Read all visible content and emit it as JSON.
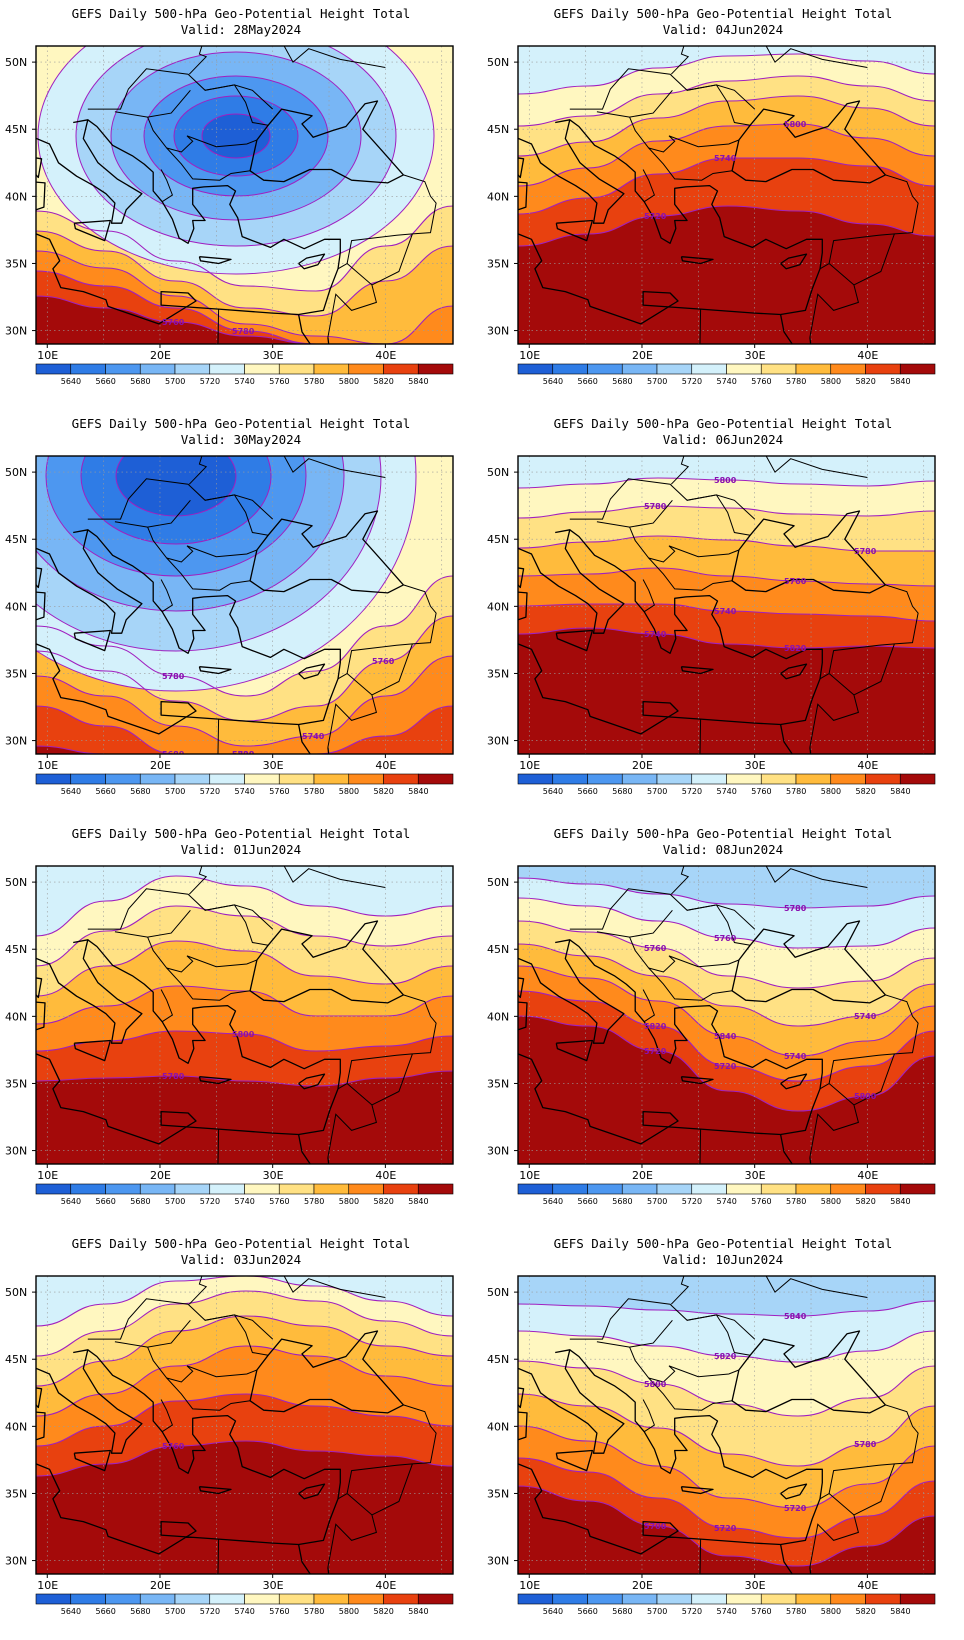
{
  "legend": {
    "levels": [
      5640,
      5660,
      5680,
      5700,
      5720,
      5740,
      5760,
      5780,
      5800,
      5820,
      5840
    ],
    "colors": [
      "#1e5fd6",
      "#2f7ce6",
      "#4d97f0",
      "#78b6f5",
      "#a7d5f8",
      "#d4f1fb",
      "#fff7c0",
      "#ffe184",
      "#ffbb3c",
      "#ff8a1c",
      "#e8410f",
      "#a40a0a"
    ],
    "labels": [
      "5640",
      "5660",
      "5680",
      "5700",
      "5720",
      "5740",
      "5760",
      "5780",
      "5800",
      "5820",
      "5840"
    ]
  },
  "axes": {
    "lon_labels": [
      "10E",
      "20E",
      "30E",
      "40E"
    ],
    "lat_labels": [
      "50N",
      "45N",
      "40N",
      "35N",
      "30N"
    ],
    "contour_color": "#a020c0"
  },
  "panels": [
    {
      "title": "GEFS Daily 500-hPa Geo-Potential Height Total",
      "valid": "Valid: 28May2024",
      "pattern": "cut-off low centered over Romania",
      "contour_labels": [
        "5760",
        "5780"
      ]
    },
    {
      "title": "GEFS Daily 500-hPa Geo-Potential Height Total",
      "valid": "Valid: 04Jun2024",
      "pattern": "zonal ridge over Mediterranean",
      "contour_labels": [
        "5720",
        "5740",
        "5800"
      ]
    },
    {
      "title": "GEFS Daily 500-hPa Geo-Potential Height Total",
      "valid": "Valid: 30May2024",
      "pattern": "trough over central Europe and Balkans",
      "contour_labels": [
        "5680",
        "5720",
        "5740",
        "5760",
        "5780",
        "5800"
      ]
    },
    {
      "title": "GEFS Daily 500-hPa Geo-Potential Height Total",
      "valid": "Valid: 06Jun2024",
      "pattern": "zonal flow",
      "contour_labels": [
        "5740",
        "5740",
        "5760",
        "5780",
        "5780",
        "5800",
        "5820"
      ]
    },
    {
      "title": "GEFS Daily 500-hPa Geo-Potential Height Total",
      "valid": "Valid: 01Jun2024",
      "pattern": "trough northwest, ridge east",
      "contour_labels": [
        "5780",
        "5800"
      ]
    },
    {
      "title": "GEFS Daily 500-hPa Geo-Potential Height Total",
      "valid": "Valid: 08Jun2024",
      "pattern": "trough over eastern Mediterranean",
      "contour_labels": [
        "5720",
        "5720",
        "5740",
        "5740",
        "5760",
        "5760",
        "5780",
        "5800",
        "5820",
        "5840"
      ]
    },
    {
      "title": "GEFS Daily 500-hPa Geo-Potential Height Total",
      "valid": "Valid: 03Jun2024",
      "pattern": "ridge building over Balkans",
      "contour_labels": [
        "5760"
      ]
    },
    {
      "title": "GEFS Daily 500-hPa Geo-Potential Height Total",
      "valid": "Valid: 10Jun2024",
      "pattern": "trough over Turkey",
      "contour_labels": [
        "5700",
        "5720",
        "5720",
        "5780",
        "5800",
        "5820",
        "5840"
      ]
    }
  ]
}
